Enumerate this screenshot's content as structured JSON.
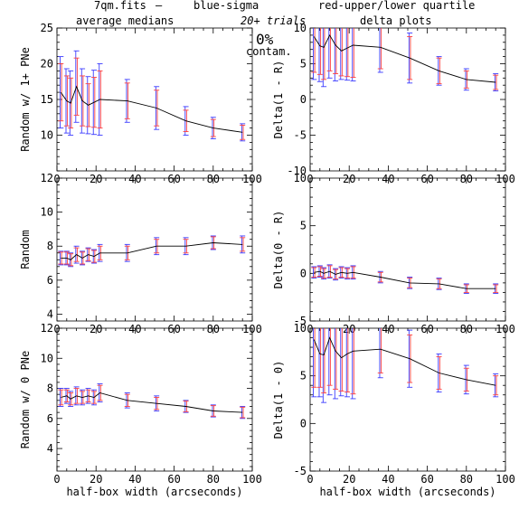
{
  "header": {
    "file": "7qm.fits",
    "dash": "—",
    "blue_label": "blue-sigma",
    "red_label": "red-upper/lower quartile",
    "blue_color": "#3b3bff",
    "red_color": "#ff4040",
    "left_title": "average medians",
    "right_title": "delta plots",
    "trials": "20+ trials",
    "contam": "0%",
    "contam_label": "contam."
  },
  "chart_data": [
    {
      "type": "line",
      "id": "tl",
      "ylabel": "Random w/ 1+ PNe",
      "xlabel": "",
      "xlim": [
        0,
        100
      ],
      "ylim": [
        5,
        25
      ],
      "xticks": [
        0,
        20,
        40,
        60,
        80,
        100
      ],
      "yticks": [
        10,
        15,
        20,
        25
      ],
      "x": [
        2,
        5,
        7,
        10,
        13,
        16,
        19,
        22,
        36,
        51,
        66,
        80,
        95
      ],
      "series": [
        {
          "values": [
            16,
            14.8,
            14.5,
            16.8,
            14.8,
            14.2,
            14.6,
            15.0,
            14.8,
            13.8,
            12.0,
            11.0,
            10.4
          ]
        }
      ],
      "sigma": [
        5,
        4.5,
        4.5,
        5,
        4.5,
        4,
        4.5,
        5,
        3,
        3,
        2,
        1.5,
        1.2
      ],
      "quartile": [
        4,
        3.5,
        3.5,
        4,
        3.5,
        3,
        3.5,
        4,
        2.5,
        2.5,
        1.5,
        1.2,
        1
      ]
    },
    {
      "type": "line",
      "id": "tr",
      "ylabel": "Delta(1 - R)",
      "xlabel": "",
      "xlim": [
        0,
        100
      ],
      "ylim": [
        -10,
        10
      ],
      "xticks": [
        0,
        20,
        40,
        60,
        80,
        100
      ],
      "yticks": [
        -10,
        -5,
        0,
        5,
        10
      ],
      "x": [
        2,
        5,
        7,
        10,
        13,
        16,
        19,
        22,
        36,
        51,
        66,
        80,
        95
      ],
      "series": [
        {
          "values": [
            8.8,
            7.5,
            7.3,
            9.0,
            7.6,
            6.8,
            7.2,
            7.6,
            7.3,
            5.8,
            4.0,
            2.8,
            2.4
          ]
        }
      ],
      "sigma": [
        6,
        5,
        5.5,
        6,
        5,
        4,
        4.5,
        5,
        3.5,
        3.5,
        2,
        1.5,
        1.2
      ],
      "quartile": [
        5,
        4,
        4.5,
        5,
        4,
        3.5,
        4,
        4.5,
        3,
        3,
        1.8,
        1.2,
        1
      ]
    },
    {
      "type": "line",
      "id": "ml",
      "ylabel": "Random",
      "xlabel": "",
      "xlim": [
        0,
        100
      ],
      "ylim": [
        3.6,
        12
      ],
      "xticks": [
        0,
        20,
        40,
        60,
        80,
        100
      ],
      "yticks": [
        4,
        6,
        8,
        10,
        12
      ],
      "x": [
        2,
        5,
        7,
        10,
        13,
        16,
        19,
        22,
        36,
        51,
        66,
        80,
        95
      ],
      "series": [
        {
          "values": [
            7.3,
            7.3,
            7.2,
            7.5,
            7.3,
            7.5,
            7.4,
            7.6,
            7.6,
            8.0,
            8.0,
            8.2,
            8.1
          ]
        }
      ],
      "sigma": [
        0.4,
        0.4,
        0.4,
        0.5,
        0.4,
        0.4,
        0.4,
        0.5,
        0.5,
        0.5,
        0.5,
        0.4,
        0.5
      ],
      "quartile": [
        0.35,
        0.35,
        0.35,
        0.4,
        0.35,
        0.35,
        0.35,
        0.4,
        0.4,
        0.4,
        0.4,
        0.35,
        0.4
      ]
    },
    {
      "type": "line",
      "id": "mr",
      "ylabel": "Delta(0 - R)",
      "xlabel": "",
      "xlim": [
        0,
        100
      ],
      "ylim": [
        -5,
        10
      ],
      "xticks": [
        0,
        20,
        40,
        60,
        80,
        100
      ],
      "yticks": [
        -5,
        0,
        5,
        10
      ],
      "x": [
        2,
        5,
        7,
        10,
        13,
        16,
        19,
        22,
        36,
        51,
        66,
        80,
        95
      ],
      "series": [
        {
          "values": [
            0.1,
            0.2,
            0.0,
            0.2,
            -0.1,
            0.1,
            0.0,
            0.1,
            -0.4,
            -1.0,
            -1.1,
            -1.6,
            -1.6
          ]
        }
      ],
      "sigma": [
        0.6,
        0.6,
        0.6,
        0.7,
        0.6,
        0.6,
        0.6,
        0.7,
        0.6,
        0.6,
        0.6,
        0.5,
        0.5
      ],
      "quartile": [
        0.5,
        0.5,
        0.5,
        0.6,
        0.5,
        0.5,
        0.5,
        0.6,
        0.5,
        0.5,
        0.5,
        0.4,
        0.4
      ]
    },
    {
      "type": "line",
      "id": "bl",
      "ylabel": "Random w/ 0 PNe",
      "xlabel": "half-box width (arcseconds)",
      "xlim": [
        0,
        100
      ],
      "ylim": [
        2.5,
        12
      ],
      "xticks": [
        0,
        20,
        40,
        60,
        80,
        100
      ],
      "yticks": [
        4,
        6,
        8,
        10,
        12
      ],
      "x": [
        2,
        5,
        7,
        10,
        13,
        16,
        19,
        22,
        36,
        51,
        66,
        80,
        95
      ],
      "series": [
        {
          "values": [
            7.4,
            7.5,
            7.3,
            7.5,
            7.4,
            7.5,
            7.4,
            7.7,
            7.2,
            7.0,
            6.8,
            6.5,
            6.4
          ]
        }
      ],
      "sigma": [
        0.6,
        0.5,
        0.5,
        0.6,
        0.5,
        0.5,
        0.5,
        0.6,
        0.5,
        0.5,
        0.4,
        0.4,
        0.4
      ],
      "quartile": [
        0.5,
        0.4,
        0.4,
        0.5,
        0.4,
        0.4,
        0.4,
        0.5,
        0.4,
        0.4,
        0.35,
        0.35,
        0.35
      ]
    },
    {
      "type": "line",
      "id": "br",
      "ylabel": "Delta(1 - 0)",
      "xlabel": "half-box width (arcseconds)",
      "xlim": [
        0,
        100
      ],
      "ylim": [
        -5,
        10
      ],
      "xticks": [
        0,
        20,
        40,
        60,
        80,
        100
      ],
      "yticks": [
        -5,
        0,
        5,
        10
      ],
      "x": [
        2,
        5,
        7,
        10,
        13,
        16,
        19,
        22,
        36,
        51,
        66,
        80,
        95
      ],
      "series": [
        {
          "values": [
            8.8,
            7.3,
            7.2,
            9.0,
            7.6,
            6.9,
            7.3,
            7.6,
            7.8,
            6.8,
            5.3,
            4.6,
            4.0
          ]
        }
      ],
      "sigma": [
        6,
        4.5,
        5,
        6,
        5,
        4,
        4.5,
        5,
        3,
        3,
        2,
        1.5,
        1.2
      ],
      "quartile": [
        5,
        3.5,
        4,
        5,
        4,
        3.5,
        4,
        4.5,
        2.5,
        2.5,
        1.7,
        1.2,
        1
      ]
    }
  ]
}
